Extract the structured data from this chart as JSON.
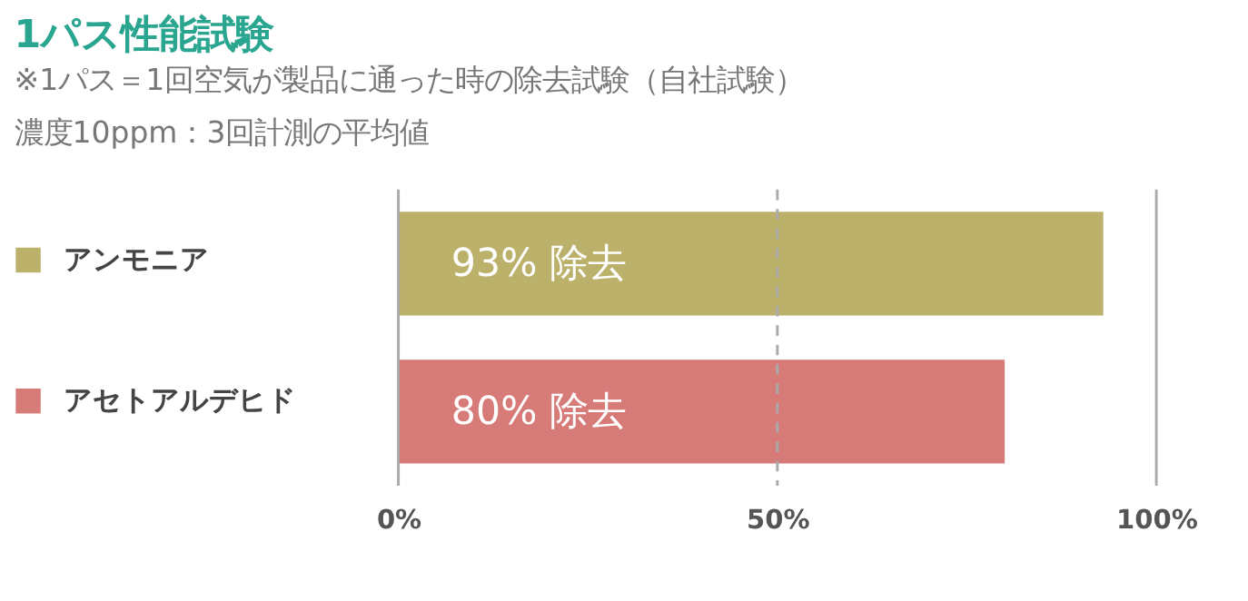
{
  "chart_data": {
    "type": "bar",
    "orientation": "horizontal",
    "title": "1パス性能試験",
    "subtitle": [
      "※1パス＝1回空気が製品に通った時の除去試験（自社試験）",
      "濃度10ppm：3回計測の平均値"
    ],
    "categories": [
      null,
      null
    ],
    "series": [
      {
        "name": "アンモニア",
        "color": "#bcb16b",
        "values": [
          93,
          null
        ],
        "value_labels": [
          "93% 除去",
          null
        ]
      },
      {
        "name": "アセトアルデヒド",
        "color": "#d67b77",
        "values": [
          null,
          80
        ],
        "value_labels": [
          null,
          "80% 除去"
        ]
      }
    ],
    "xlim": [
      0,
      100
    ],
    "xticks": [
      {
        "value": 0,
        "label": "0%"
      },
      {
        "value": 50,
        "label": "50%"
      },
      {
        "value": 100,
        "label": "100%"
      }
    ],
    "legend": "left",
    "tick_labels": "x",
    "ref_lines": [
      {
        "axis": "x",
        "value": 0,
        "line_style": "solid",
        "color": "#aaaaaa"
      },
      {
        "axis": "x",
        "value": 50,
        "line_style": "dashed",
        "color": "#aaaaaa"
      },
      {
        "axis": "x",
        "value": 100,
        "line_style": "solid",
        "color": "#aaaaaa"
      }
    ]
  }
}
